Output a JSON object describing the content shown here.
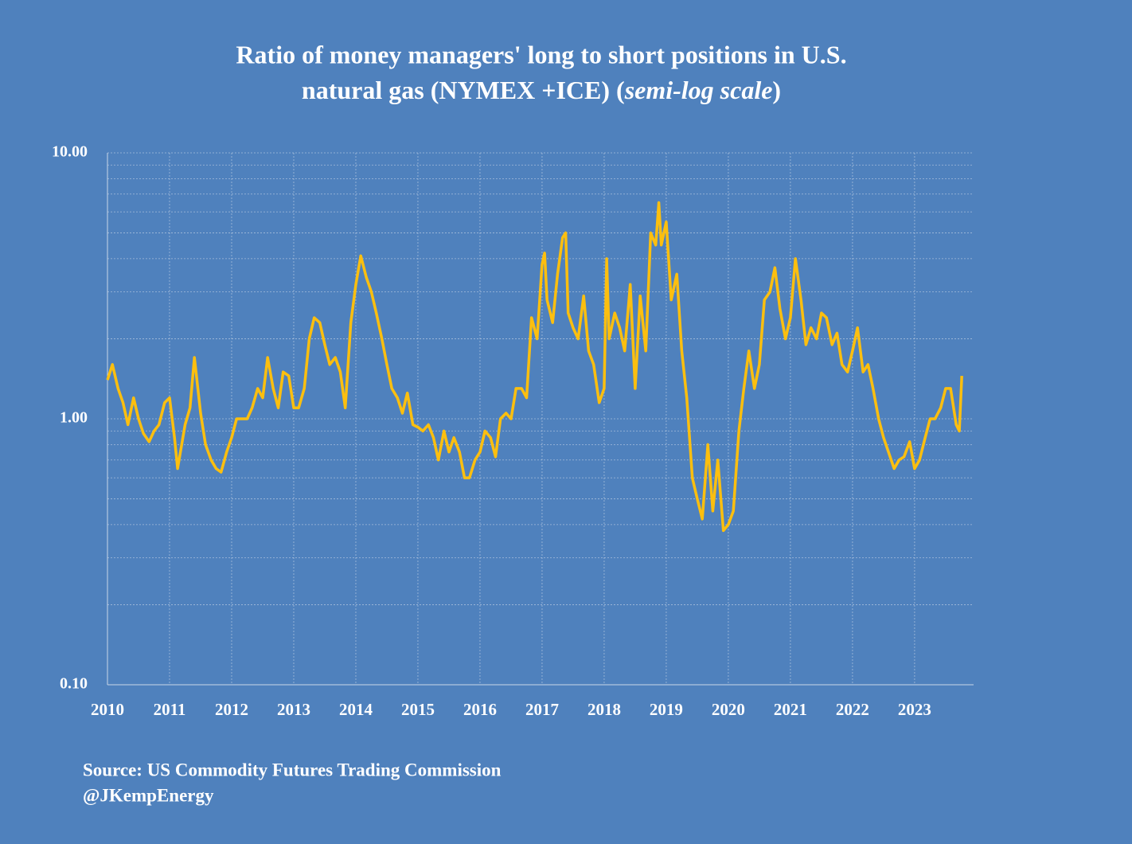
{
  "chart_data": {
    "type": "line",
    "title": [
      "Ratio of money managers' long to short positions in U.S.",
      "natural gas  (NYMEX +ICE) (",
      "semi-log scale",
      ")"
    ],
    "source": [
      "Source: US Commodity Futures Trading Commission",
      "@JKempEnergy"
    ],
    "log_scale": true,
    "grid": true,
    "xlim": [
      2010,
      2023.95
    ],
    "xticks": [
      2010,
      2011,
      2012,
      2013,
      2014,
      2015,
      2016,
      2017,
      2018,
      2019,
      2020,
      2021,
      2022,
      2023
    ],
    "ylim": [
      0.1,
      10
    ],
    "yticks": [
      {
        "value": 0.1,
        "label": "0.10"
      },
      {
        "value": 1,
        "label": "1.00"
      },
      {
        "value": 10,
        "label": "10.00"
      }
    ],
    "x": [
      2010.0,
      2010.08,
      2010.17,
      2010.25,
      2010.33,
      2010.42,
      2010.5,
      2010.58,
      2010.67,
      2010.75,
      2010.83,
      2010.92,
      2011.0,
      2011.08,
      2011.13,
      2011.25,
      2011.33,
      2011.4,
      2011.5,
      2011.58,
      2011.67,
      2011.75,
      2011.83,
      2011.92,
      2012.0,
      2012.08,
      2012.17,
      2012.25,
      2012.33,
      2012.42,
      2012.5,
      2012.58,
      2012.67,
      2012.75,
      2012.83,
      2012.92,
      2013.0,
      2013.08,
      2013.17,
      2013.25,
      2013.33,
      2013.42,
      2013.5,
      2013.58,
      2013.67,
      2013.75,
      2013.83,
      2013.92,
      2014.0,
      2014.08,
      2014.17,
      2014.25,
      2014.33,
      2014.42,
      2014.5,
      2014.58,
      2014.67,
      2014.75,
      2014.83,
      2014.92,
      2015.0,
      2015.08,
      2015.17,
      2015.25,
      2015.33,
      2015.42,
      2015.5,
      2015.58,
      2015.67,
      2015.75,
      2015.83,
      2015.92,
      2016.0,
      2016.08,
      2016.17,
      2016.25,
      2016.33,
      2016.42,
      2016.5,
      2016.58,
      2016.67,
      2016.75,
      2016.83,
      2016.92,
      2017.0,
      2017.04,
      2017.08,
      2017.17,
      2017.25,
      2017.33,
      2017.38,
      2017.42,
      2017.5,
      2017.58,
      2017.67,
      2017.75,
      2017.83,
      2017.92,
      2018.0,
      2018.04,
      2018.08,
      2018.17,
      2018.25,
      2018.33,
      2018.42,
      2018.5,
      2018.58,
      2018.67,
      2018.75,
      2018.83,
      2018.88,
      2018.92,
      2019.0,
      2019.08,
      2019.17,
      2019.25,
      2019.33,
      2019.42,
      2019.5,
      2019.58,
      2019.67,
      2019.75,
      2019.83,
      2019.92,
      2020.0,
      2020.08,
      2020.17,
      2020.25,
      2020.33,
      2020.42,
      2020.5,
      2020.58,
      2020.67,
      2020.75,
      2020.83,
      2020.92,
      2021.0,
      2021.08,
      2021.17,
      2021.25,
      2021.33,
      2021.42,
      2021.5,
      2021.58,
      2021.67,
      2021.75,
      2021.83,
      2021.92,
      2022.0,
      2022.08,
      2022.17,
      2022.25,
      2022.33,
      2022.42,
      2022.5,
      2022.58,
      2022.67,
      2022.75,
      2022.83,
      2022.92,
      2023.0,
      2023.08,
      2023.17,
      2023.25,
      2023.33,
      2023.42,
      2023.5,
      2023.58,
      2023.67,
      2023.72,
      2023.76
    ],
    "series": [
      {
        "color": "#fcbf0f",
        "values": [
          1.4,
          1.6,
          1.3,
          1.15,
          0.95,
          1.2,
          1.0,
          0.88,
          0.82,
          0.9,
          0.95,
          1.15,
          1.2,
          0.85,
          0.65,
          0.95,
          1.1,
          1.7,
          1.05,
          0.8,
          0.7,
          0.65,
          0.63,
          0.75,
          0.85,
          1.0,
          1.0,
          1.0,
          1.1,
          1.3,
          1.2,
          1.7,
          1.3,
          1.1,
          1.5,
          1.45,
          1.1,
          1.1,
          1.3,
          2.0,
          2.4,
          2.3,
          1.9,
          1.6,
          1.7,
          1.5,
          1.1,
          2.3,
          3.2,
          4.1,
          3.4,
          3.0,
          2.5,
          2.0,
          1.6,
          1.3,
          1.2,
          1.05,
          1.25,
          0.95,
          0.93,
          0.9,
          0.95,
          0.85,
          0.7,
          0.9,
          0.75,
          0.85,
          0.75,
          0.6,
          0.6,
          0.7,
          0.75,
          0.9,
          0.85,
          0.72,
          1.0,
          1.05,
          1.0,
          1.3,
          1.3,
          1.2,
          2.4,
          2.0,
          3.8,
          4.2,
          2.8,
          2.3,
          3.5,
          4.8,
          5.0,
          2.5,
          2.2,
          2.0,
          2.9,
          1.8,
          1.6,
          1.15,
          1.3,
          4.0,
          2.0,
          2.5,
          2.2,
          1.8,
          3.2,
          1.3,
          2.9,
          1.8,
          5.0,
          4.5,
          6.5,
          4.5,
          5.5,
          2.8,
          3.5,
          1.8,
          1.2,
          0.6,
          0.5,
          0.42,
          0.8,
          0.45,
          0.7,
          0.38,
          0.4,
          0.45,
          0.9,
          1.3,
          1.8,
          1.3,
          1.6,
          2.8,
          3.0,
          3.7,
          2.6,
          2.0,
          2.4,
          4.0,
          2.8,
          1.9,
          2.2,
          2.0,
          2.5,
          2.4,
          1.9,
          2.1,
          1.6,
          1.5,
          1.8,
          2.2,
          1.5,
          1.6,
          1.3,
          1.0,
          0.85,
          0.75,
          0.65,
          0.7,
          0.72,
          0.82,
          0.65,
          0.7,
          0.85,
          1.0,
          1.0,
          1.1,
          1.3,
          1.3,
          0.95,
          0.9,
          1.45
        ]
      }
    ]
  }
}
